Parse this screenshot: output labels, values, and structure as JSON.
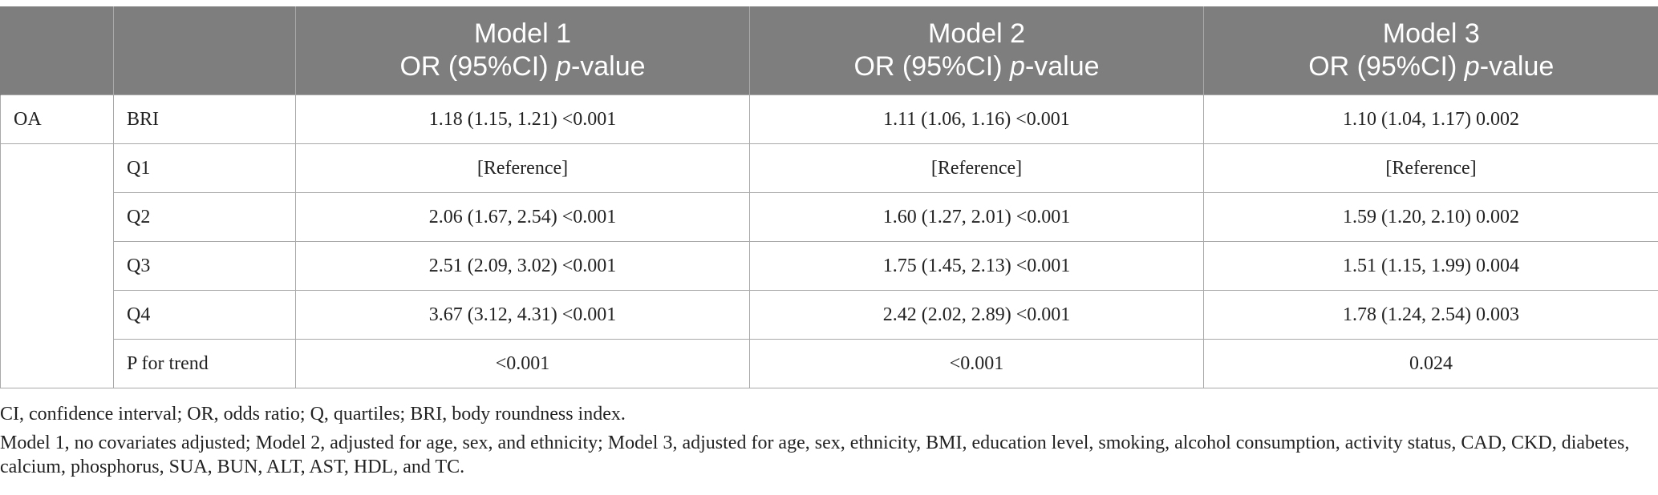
{
  "table": {
    "headers": [
      {
        "line1": "",
        "line2a": "",
        "line2b": "",
        "line2c": ""
      },
      {
        "line1": "",
        "line2a": "",
        "line2b": "",
        "line2c": ""
      },
      {
        "line1": "Model 1",
        "line2a": "OR (95%CI) ",
        "line2b": "p",
        "line2c": "-value"
      },
      {
        "line1": "Model 2",
        "line2a": "OR (95%CI) ",
        "line2b": "p",
        "line2c": "-value"
      },
      {
        "line1": "Model 3",
        "line2a": "OR (95%CI) ",
        "line2b": "p",
        "line2c": "-value"
      }
    ],
    "rows": [
      {
        "group": "OA",
        "label": "BRI",
        "m1": "1.18 (1.15, 1.21) <0.001",
        "m2": "1.11 (1.06, 1.16) <0.001",
        "m3": "1.10 (1.04, 1.17) 0.002"
      },
      {
        "group": "",
        "label": "Q1",
        "m1": "[Reference]",
        "m2": "[Reference]",
        "m3": "[Reference]"
      },
      {
        "group": "",
        "label": "Q2",
        "m1": "2.06 (1.67, 2.54) <0.001",
        "m2": "1.60 (1.27, 2.01) <0.001",
        "m3": "1.59 (1.20, 2.10) 0.002"
      },
      {
        "group": "",
        "label": "Q3",
        "m1": "2.51 (2.09, 3.02) <0.001",
        "m2": "1.75 (1.45, 2.13) <0.001",
        "m3": "1.51 (1.15, 1.99) 0.004"
      },
      {
        "group": "",
        "label": "Q4",
        "m1": "3.67 (3.12, 4.31) <0.001",
        "m2": "2.42 (2.02, 2.89) <0.001",
        "m3": "1.78 (1.24, 2.54) 0.003"
      },
      {
        "group": "",
        "label": "P for trend",
        "m1": "<0.001",
        "m2": "<0.001",
        "m3": "0.024"
      }
    ]
  },
  "notes": [
    "CI, confidence interval; OR, odds ratio; Q, quartiles; BRI, body roundness index.",
    "Model 1, no covariates adjusted; Model 2, adjusted for age, sex, and ethnicity; Model 3, adjusted for age, sex, ethnicity, BMI, education level, smoking, alcohol consumption, activity status, CAD, CKD, diabetes, calcium, phosphorus, SUA, BUN, ALT, AST, HDL, and TC."
  ]
}
